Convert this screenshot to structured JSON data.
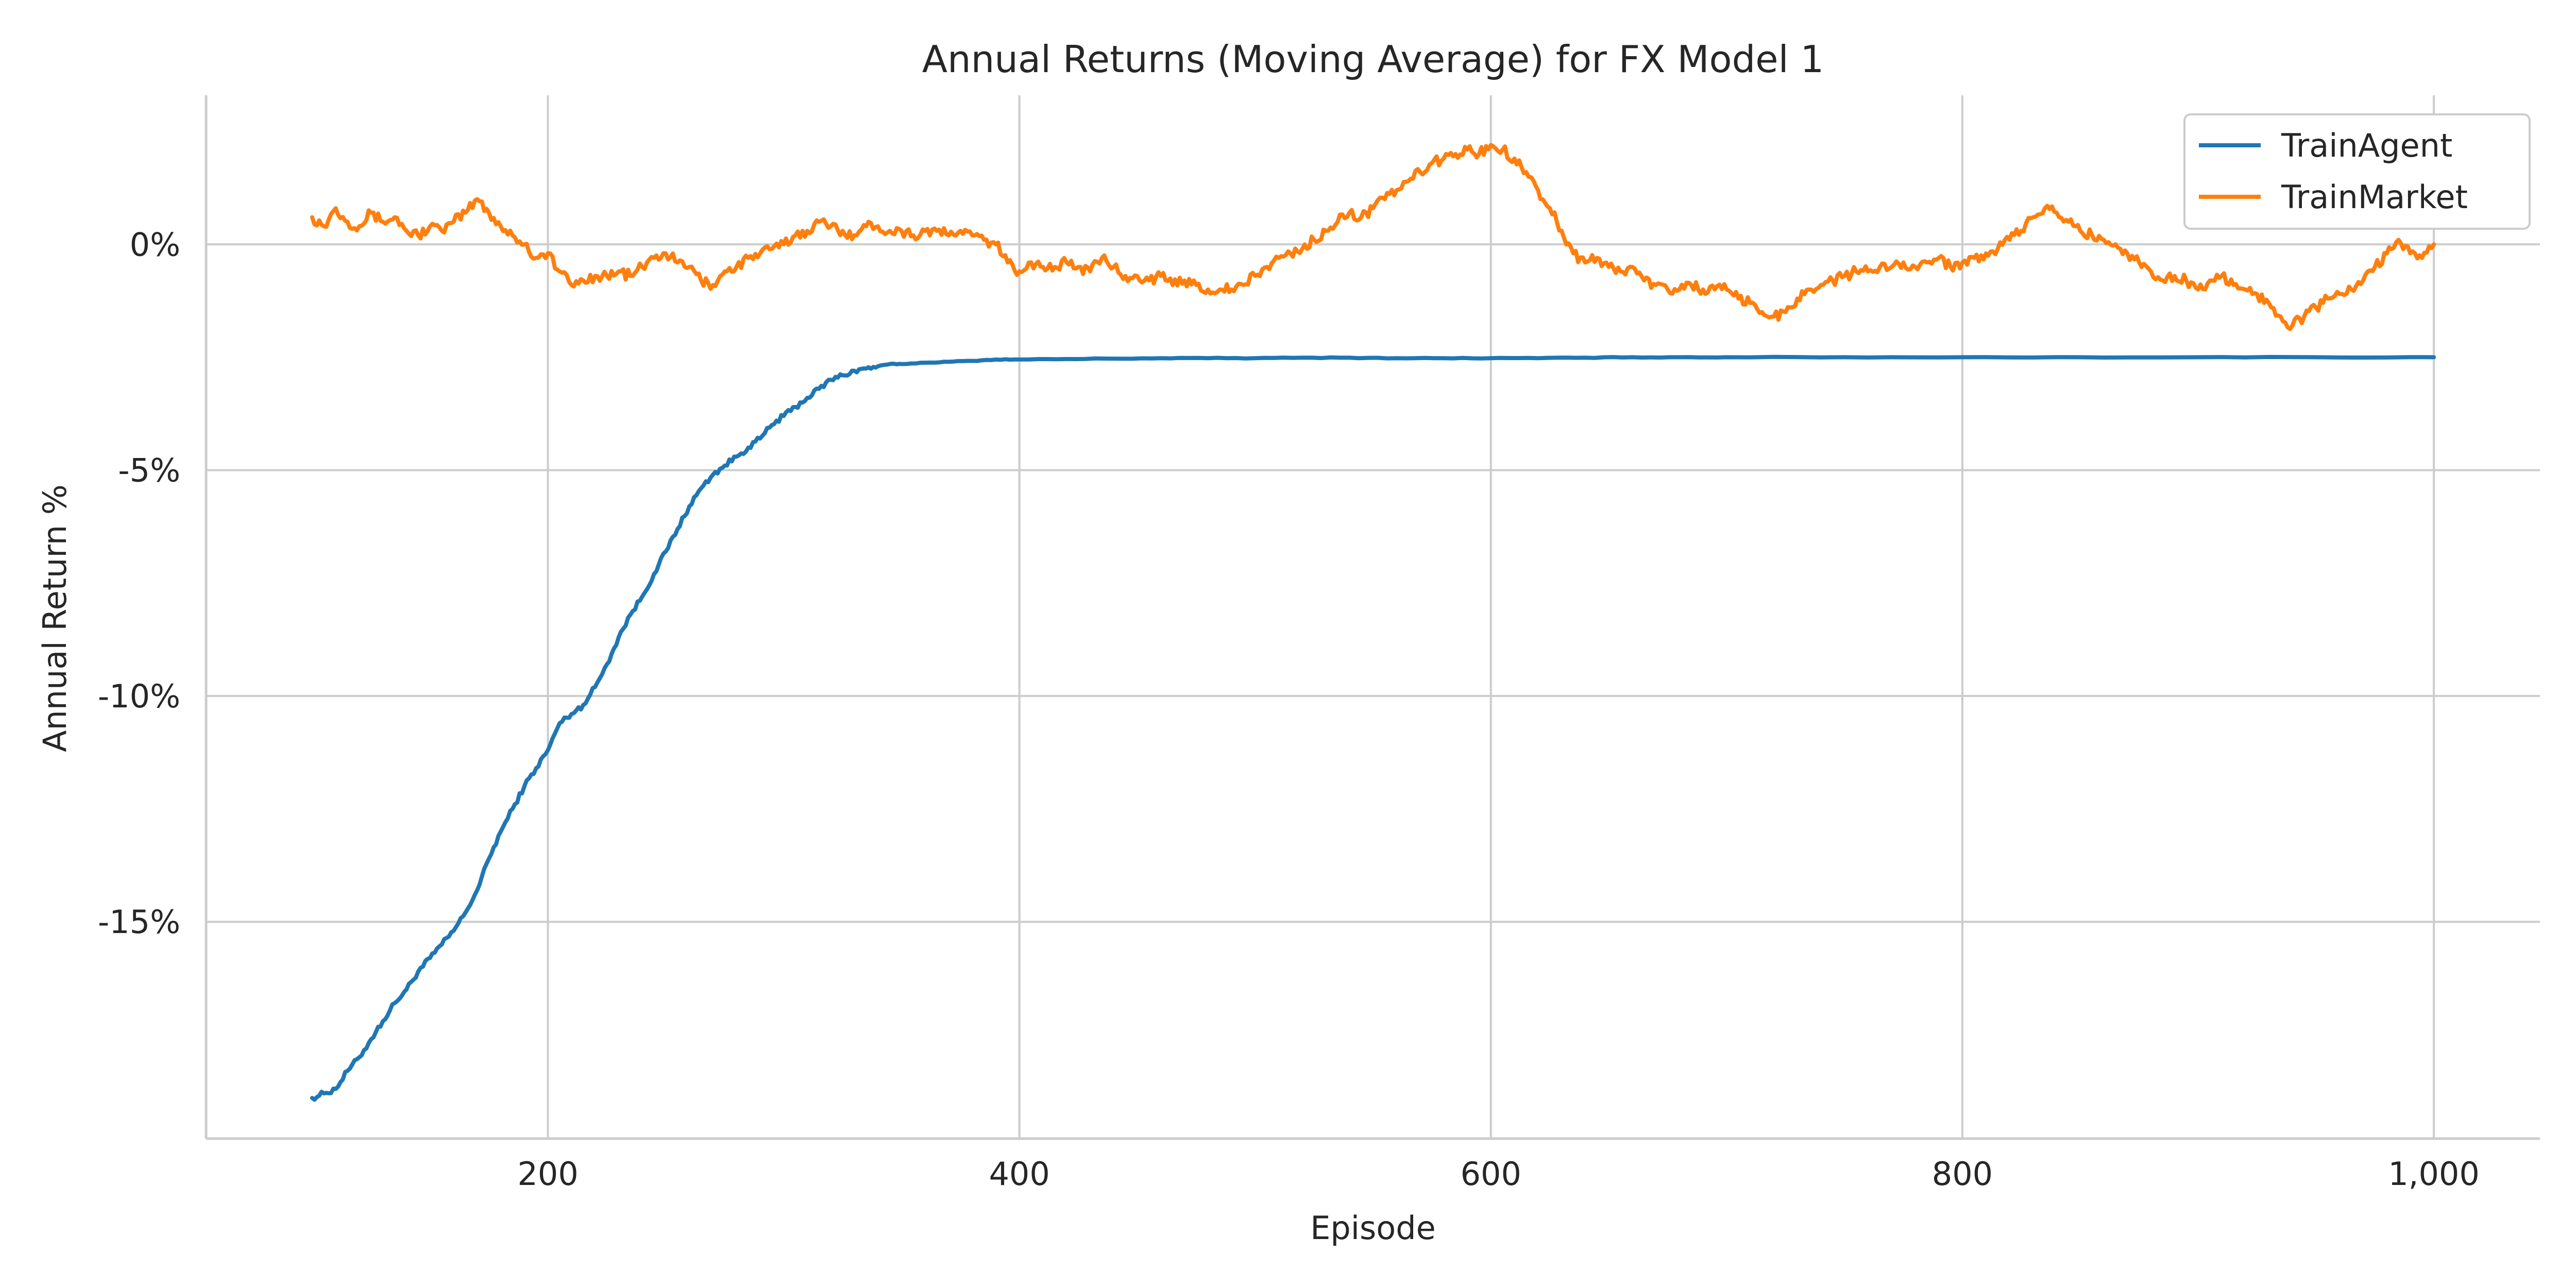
{
  "chart_data": {
    "type": "line",
    "title": "Annual Returns (Moving Average) for FX Model 1",
    "xlabel": "Episode",
    "ylabel": "Annual Return %",
    "xlim": [
      55,
      1045
    ],
    "ylim": [
      -19.8,
      3.3
    ],
    "x_ticks": [
      200,
      400,
      600,
      800,
      1000
    ],
    "x_tick_labels": [
      "200",
      "400",
      "600",
      "800",
      "1,000"
    ],
    "y_ticks": [
      0,
      -5,
      -10,
      -15
    ],
    "y_tick_labels": [
      "0%",
      "-5%",
      "-10%",
      "-15%"
    ],
    "grid": true,
    "legend_position": "top-right",
    "series": [
      {
        "name": "TrainAgent",
        "color": "#1f77b4",
        "x": [
          100,
          105,
          110,
          115,
          120,
          125,
          130,
          135,
          140,
          145,
          150,
          155,
          160,
          165,
          170,
          175,
          180,
          185,
          190,
          195,
          200,
          205,
          210,
          215,
          220,
          225,
          230,
          235,
          240,
          245,
          250,
          255,
          260,
          265,
          270,
          275,
          280,
          285,
          290,
          295,
          300,
          305,
          310,
          315,
          320,
          325,
          330,
          335,
          340,
          345,
          350,
          360,
          370,
          380,
          390,
          400,
          420,
          440,
          460,
          480,
          500,
          520,
          540,
          560,
          580,
          600,
          620,
          640,
          660,
          680,
          700,
          750,
          800,
          850,
          900,
          950,
          1000
        ],
        "y": [
          -18.9,
          -18.8,
          -18.7,
          -18.3,
          -18.0,
          -17.6,
          -17.2,
          -16.8,
          -16.5,
          -16.1,
          -15.8,
          -15.5,
          -15.2,
          -14.8,
          -14.3,
          -13.6,
          -13.0,
          -12.5,
          -12.0,
          -11.6,
          -11.2,
          -10.6,
          -10.4,
          -10.2,
          -9.8,
          -9.3,
          -8.7,
          -8.2,
          -7.8,
          -7.3,
          -6.8,
          -6.3,
          -5.8,
          -5.4,
          -5.1,
          -4.9,
          -4.7,
          -4.5,
          -4.3,
          -4.0,
          -3.8,
          -3.6,
          -3.4,
          -3.2,
          -3.0,
          -2.9,
          -2.8,
          -2.75,
          -2.7,
          -2.65,
          -2.65,
          -2.62,
          -2.6,
          -2.58,
          -2.55,
          -2.55,
          -2.54,
          -2.53,
          -2.52,
          -2.52,
          -2.52,
          -2.51,
          -2.51,
          -2.52,
          -2.52,
          -2.52,
          -2.52,
          -2.51,
          -2.5,
          -2.5,
          -2.5,
          -2.5,
          -2.5,
          -2.5,
          -2.5,
          -2.5,
          -2.5
        ]
      },
      {
        "name": "TrainMarket",
        "color": "#ff7f0e",
        "x": [
          100,
          105,
          110,
          115,
          120,
          125,
          130,
          135,
          140,
          145,
          150,
          155,
          160,
          165,
          170,
          175,
          180,
          185,
          190,
          195,
          200,
          205,
          210,
          215,
          220,
          225,
          230,
          235,
          240,
          245,
          250,
          255,
          260,
          265,
          270,
          275,
          280,
          285,
          290,
          295,
          300,
          305,
          310,
          315,
          320,
          325,
          330,
          335,
          340,
          345,
          350,
          355,
          360,
          365,
          370,
          375,
          380,
          385,
          390,
          395,
          400,
          405,
          410,
          415,
          420,
          425,
          430,
          435,
          440,
          445,
          450,
          455,
          460,
          465,
          470,
          475,
          480,
          485,
          490,
          495,
          500,
          505,
          510,
          515,
          520,
          525,
          530,
          535,
          540,
          545,
          550,
          555,
          560,
          565,
          570,
          575,
          580,
          585,
          590,
          595,
          600,
          605,
          610,
          615,
          620,
          625,
          630,
          635,
          640,
          645,
          650,
          655,
          660,
          665,
          670,
          675,
          680,
          685,
          690,
          695,
          700,
          705,
          710,
          715,
          720,
          725,
          730,
          735,
          740,
          745,
          750,
          755,
          760,
          765,
          770,
          775,
          780,
          785,
          790,
          795,
          800,
          805,
          810,
          815,
          820,
          825,
          830,
          835,
          840,
          845,
          850,
          855,
          860,
          865,
          870,
          875,
          880,
          885,
          890,
          895,
          900,
          905,
          910,
          915,
          920,
          925,
          930,
          935,
          940,
          945,
          950,
          955,
          960,
          965,
          970,
          975,
          980,
          985,
          990,
          995,
          1000
        ],
        "y": [
          0.6,
          0.4,
          0.8,
          0.5,
          0.4,
          0.7,
          0.5,
          0.6,
          0.3,
          0.2,
          0.4,
          0.3,
          0.5,
          0.7,
          1.0,
          0.7,
          0.4,
          0.2,
          0.0,
          -0.3,
          -0.2,
          -0.6,
          -0.9,
          -0.8,
          -0.7,
          -0.7,
          -0.6,
          -0.7,
          -0.5,
          -0.3,
          -0.2,
          -0.4,
          -0.5,
          -0.8,
          -0.9,
          -0.6,
          -0.5,
          -0.3,
          -0.2,
          -0.1,
          0.0,
          0.2,
          0.3,
          0.5,
          0.4,
          0.3,
          0.2,
          0.4,
          0.4,
          0.3,
          0.3,
          0.2,
          0.3,
          0.3,
          0.2,
          0.3,
          0.2,
          0.1,
          0.0,
          -0.4,
          -0.6,
          -0.4,
          -0.5,
          -0.5,
          -0.4,
          -0.5,
          -0.6,
          -0.3,
          -0.5,
          -0.7,
          -0.7,
          -0.8,
          -0.7,
          -0.9,
          -0.8,
          -0.9,
          -1.0,
          -1.0,
          -1.0,
          -0.9,
          -0.7,
          -0.5,
          -0.3,
          -0.2,
          -0.1,
          0.1,
          0.3,
          0.5,
          0.7,
          0.6,
          0.8,
          1.0,
          1.2,
          1.4,
          1.6,
          1.8,
          1.9,
          2.0,
          2.1,
          2.0,
          2.2,
          2.1,
          1.9,
          1.6,
          1.2,
          0.8,
          0.3,
          -0.2,
          -0.4,
          -0.3,
          -0.5,
          -0.6,
          -0.5,
          -0.8,
          -0.9,
          -1.0,
          -1.0,
          -0.9,
          -1.0,
          -1.0,
          -1.0,
          -1.2,
          -1.3,
          -1.5,
          -1.6,
          -1.5,
          -1.2,
          -1.0,
          -0.9,
          -0.8,
          -0.7,
          -0.6,
          -0.6,
          -0.5,
          -0.5,
          -0.4,
          -0.5,
          -0.4,
          -0.3,
          -0.5,
          -0.4,
          -0.3,
          -0.2,
          -0.1,
          0.1,
          0.3,
          0.6,
          0.8,
          0.7,
          0.5,
          0.3,
          0.2,
          0.1,
          0.0,
          -0.2,
          -0.4,
          -0.6,
          -0.8,
          -0.7,
          -0.8,
          -1.0,
          -0.8,
          -0.7,
          -0.9,
          -1.0,
          -1.1,
          -1.3,
          -1.6,
          -1.8,
          -1.6,
          -1.4,
          -1.2,
          -1.1,
          -1.0,
          -0.8,
          -0.5,
          -0.2,
          0.1,
          -0.2,
          -0.3,
          0.0
        ]
      }
    ]
  }
}
